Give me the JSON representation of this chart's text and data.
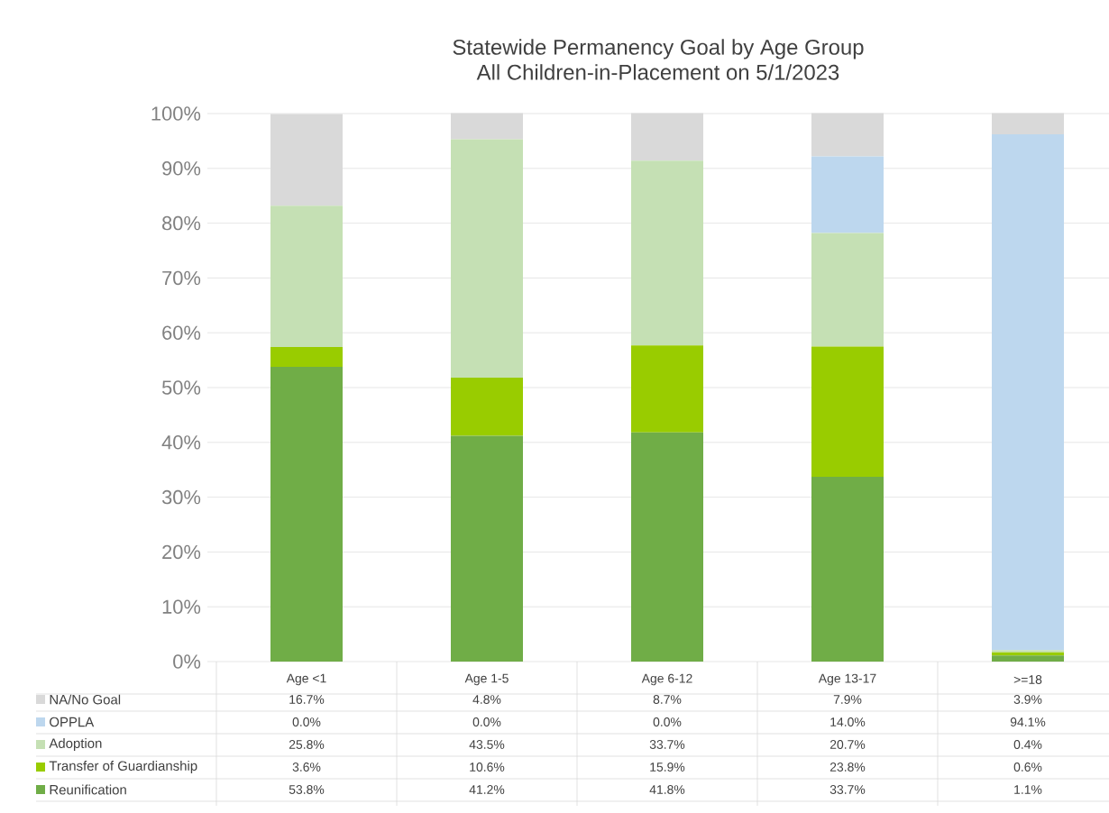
{
  "chart_data": {
    "type": "bar",
    "stacked": true,
    "title": "Statewide Permanency Goal by Age Group",
    "subtitle": "All Children-in-Placement on 5/1/2023",
    "categories": [
      "Age <1",
      "Age 1-5",
      "Age 6-12",
      "Age 13-17",
      ">=18"
    ],
    "series": [
      {
        "name": "Reunification",
        "color": "#70ad47",
        "values": [
          53.8,
          41.2,
          41.8,
          33.7,
          1.1
        ],
        "value_labels": [
          "53.8%",
          "41.2%",
          "41.8%",
          "33.7%",
          "1.1%"
        ]
      },
      {
        "name": "Transfer of Guardianship",
        "color": "#99cc00",
        "values": [
          3.6,
          10.6,
          15.9,
          23.8,
          0.6
        ],
        "value_labels": [
          "3.6%",
          "10.6%",
          "15.9%",
          "23.8%",
          "0.6%"
        ]
      },
      {
        "name": "Adoption",
        "color": "#c5e0b4",
        "values": [
          25.8,
          43.5,
          33.7,
          20.7,
          0.4
        ],
        "value_labels": [
          "25.8%",
          "43.5%",
          "33.7%",
          "20.7%",
          "0.4%"
        ]
      },
      {
        "name": "OPPLA",
        "color": "#bdd7ee",
        "values": [
          0.0,
          0.0,
          0.0,
          14.0,
          94.1
        ],
        "value_labels": [
          "0.0%",
          "0.0%",
          "0.0%",
          "14.0%",
          "94.1%"
        ]
      },
      {
        "name": "NA/No Goal",
        "color": "#d9d9d9",
        "values": [
          16.7,
          4.8,
          8.7,
          7.9,
          3.9
        ],
        "value_labels": [
          "16.7%",
          "4.8%",
          "8.7%",
          "7.9%",
          "3.9%"
        ]
      }
    ],
    "ylim": [
      0,
      100
    ],
    "yticks": [
      {
        "value": 0,
        "label": "0%"
      },
      {
        "value": 10,
        "label": "10%"
      },
      {
        "value": 20,
        "label": "20%"
      },
      {
        "value": 30,
        "label": "30%"
      },
      {
        "value": 40,
        "label": "40%"
      },
      {
        "value": 50,
        "label": "50%"
      },
      {
        "value": 60,
        "label": "60%"
      },
      {
        "value": 70,
        "label": "70%"
      },
      {
        "value": 80,
        "label": "80%"
      },
      {
        "value": 90,
        "label": "90%"
      },
      {
        "value": 100,
        "label": "100%"
      }
    ],
    "grid": "y",
    "legend": "bottom"
  }
}
